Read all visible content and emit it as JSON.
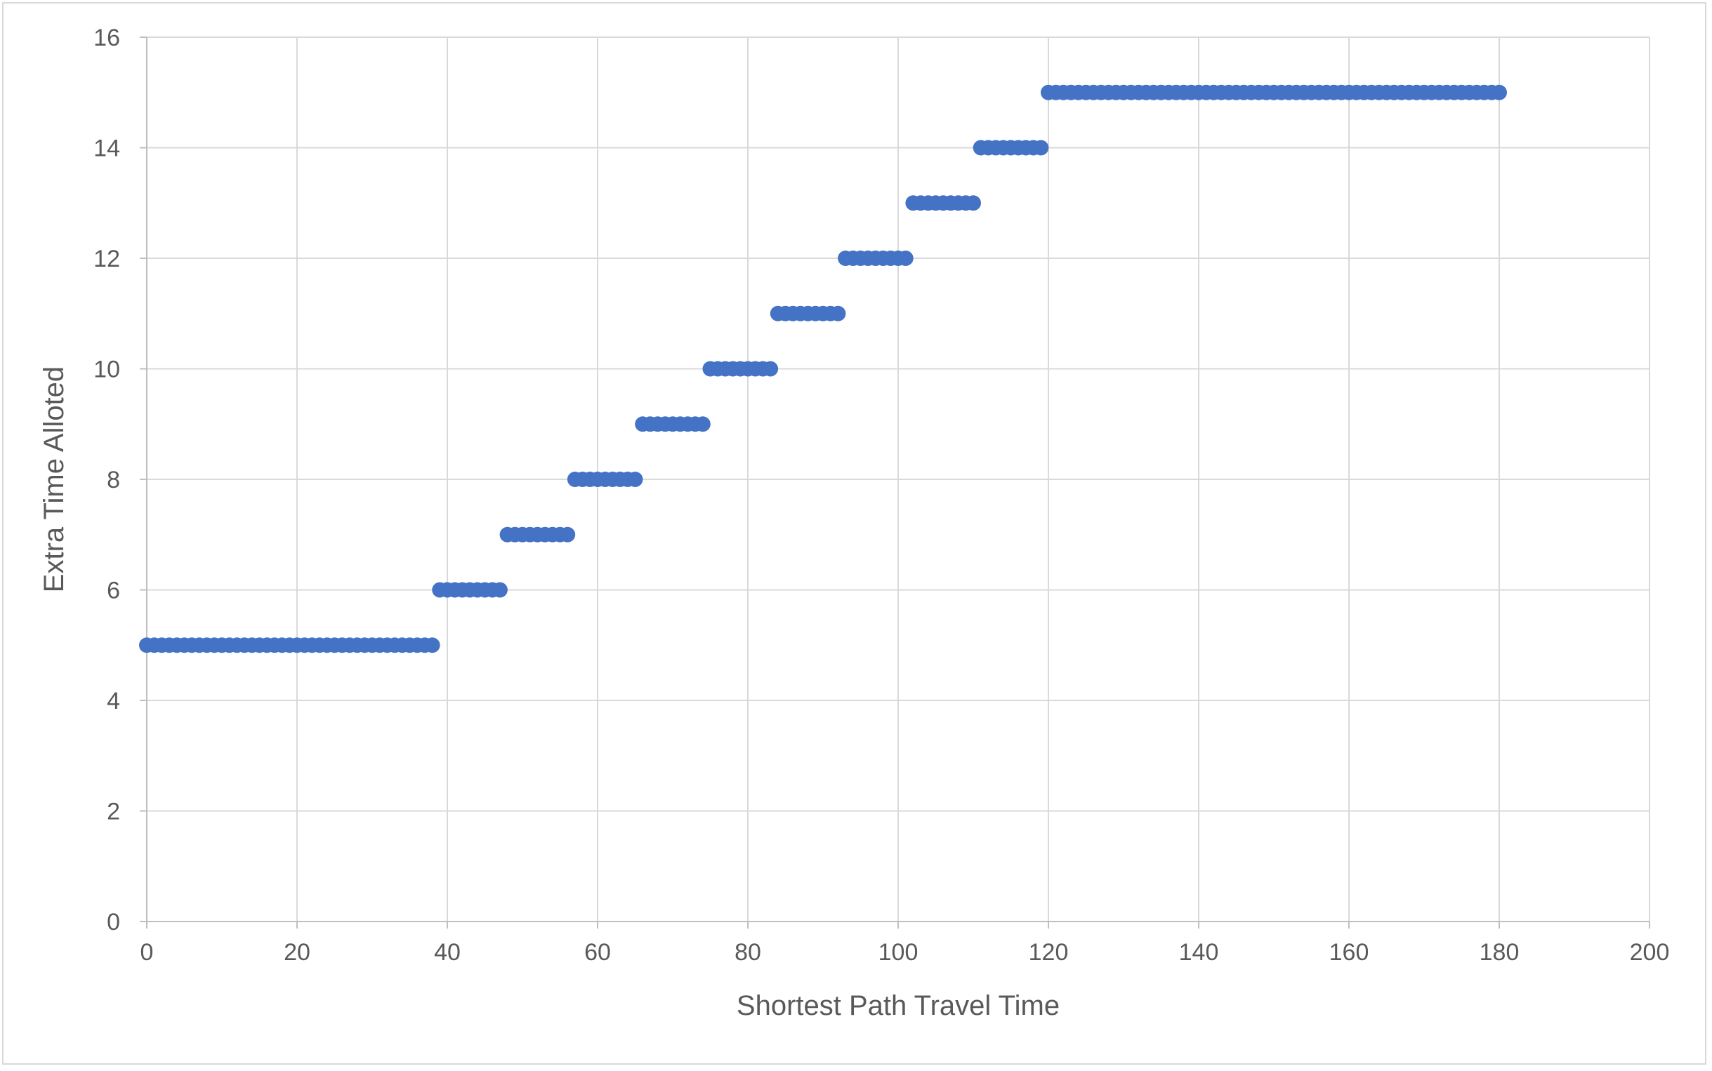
{
  "chart_data": {
    "type": "scatter",
    "title": "",
    "xlabel": "Shortest Path Travel Time",
    "ylabel": "Extra Time Alloted",
    "xlim": [
      0,
      200
    ],
    "ylim": [
      0,
      16
    ],
    "x_ticks": [
      "0",
      "20",
      "40",
      "60",
      "80",
      "100",
      "120",
      "140",
      "160",
      "180",
      "200"
    ],
    "y_ticks": [
      "0",
      "2",
      "4",
      "6",
      "8",
      "10",
      "12",
      "14",
      "16"
    ],
    "grid": true,
    "legend": "none",
    "marker_color": "#4472C4",
    "series": [
      {
        "segments": [
          {
            "x_start": 0,
            "x_end": 38,
            "y": 5
          },
          {
            "x_start": 39,
            "x_end": 47,
            "y": 6
          },
          {
            "x_start": 48,
            "x_end": 56,
            "y": 7
          },
          {
            "x_start": 57,
            "x_end": 65,
            "y": 8
          },
          {
            "x_start": 66,
            "x_end": 74,
            "y": 9
          },
          {
            "x_start": 75,
            "x_end": 83,
            "y": 10
          },
          {
            "x_start": 84,
            "x_end": 92,
            "y": 11
          },
          {
            "x_start": 93,
            "x_end": 101,
            "y": 12
          },
          {
            "x_start": 102,
            "x_end": 110,
            "y": 13
          },
          {
            "x_start": 111,
            "x_end": 119,
            "y": 14
          },
          {
            "x_start": 120,
            "x_end": 180,
            "y": 15
          }
        ]
      }
    ]
  }
}
